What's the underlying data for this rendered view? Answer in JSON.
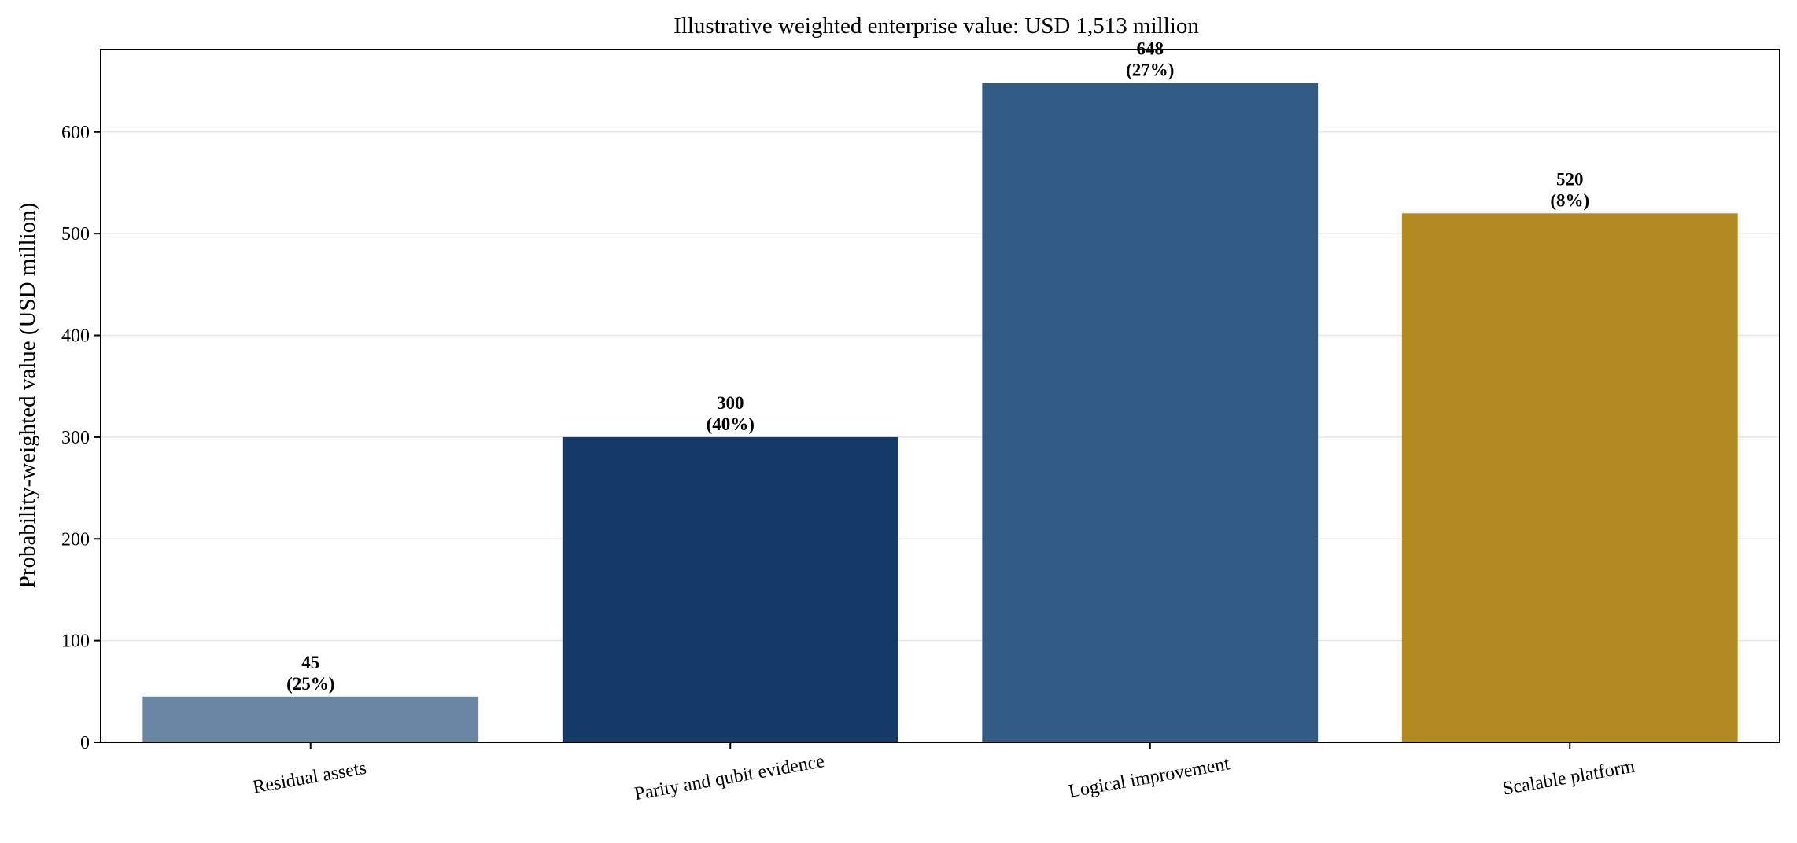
{
  "chart_data": {
    "type": "bar",
    "title": "Illustrative weighted enterprise value: USD 1,513 million",
    "xlabel": "",
    "ylabel": "Probability-weighted value (USD million)",
    "categories": [
      "Residual assets",
      "Parity and qubit evidence",
      "Logical improvement",
      "Scalable platform"
    ],
    "values": [
      45,
      300,
      648,
      520
    ],
    "value_labels": [
      "45",
      "300",
      "648",
      "520"
    ],
    "weight_labels": [
      "(25%)",
      "(40%)",
      "(27%)",
      "(8%)"
    ],
    "colors": [
      "#6a88a4",
      "#143a69",
      "#325c84",
      "#b38a22"
    ],
    "ylim": [
      0,
      681
    ],
    "yticks": [
      0,
      100,
      200,
      300,
      400,
      500,
      600
    ],
    "grid": "horizontal",
    "legend": "none"
  }
}
